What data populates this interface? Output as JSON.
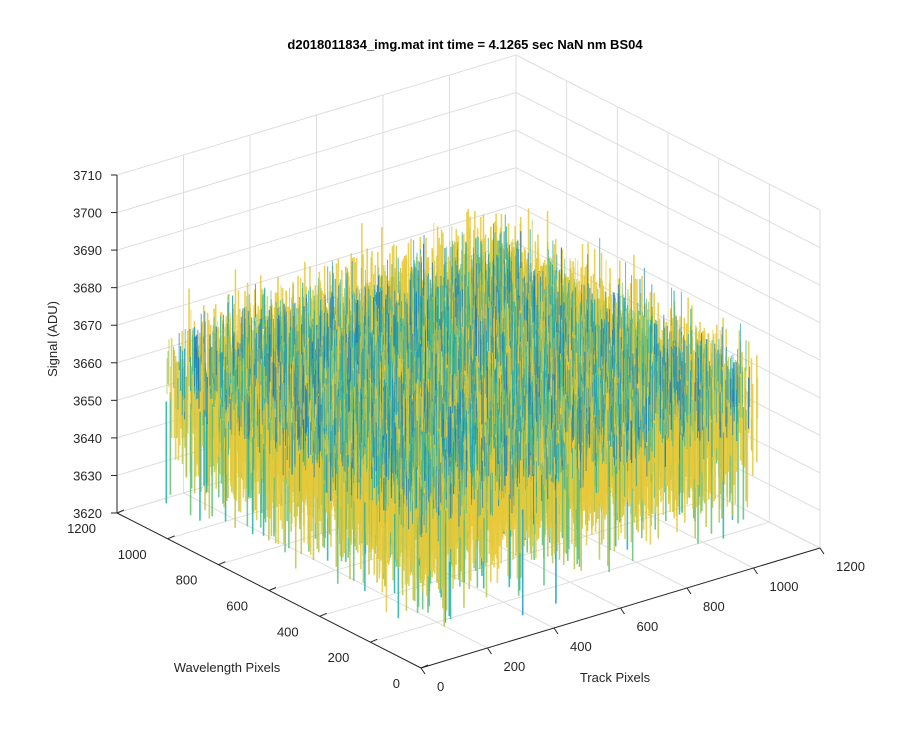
{
  "chart_data": {
    "type": "surface3d",
    "title": "d2018011834_img.mat int time = 4.1265 sec  NaN nm BS04",
    "xlabel": "Track Pixels",
    "ylabel": "Wavelength Pixels",
    "zlabel": "Signal (ADU)",
    "xlim": [
      0,
      1200
    ],
    "ylim": [
      0,
      1200
    ],
    "zlim": [
      3620,
      3710
    ],
    "xticks": [
      "0",
      "200",
      "400",
      "600",
      "800",
      "1000",
      "1200"
    ],
    "yticks": [
      "0",
      "200",
      "400",
      "600",
      "800",
      "1000",
      "1200"
    ],
    "zticks": [
      "3620",
      "3630",
      "3640",
      "3650",
      "3660",
      "3670",
      "3680",
      "3690",
      "3700",
      "3710"
    ],
    "data_extent": {
      "x": [
        0,
        1024
      ],
      "y": [
        0,
        1024
      ]
    },
    "signal_mean": 3658,
    "signal_range": [
      3625,
      3705
    ],
    "grid": true,
    "colormap": [
      "#1f77b4",
      "#1b9dc2",
      "#20b2aa",
      "#5fbf7a",
      "#bcc64a",
      "#e8c93a"
    ]
  }
}
